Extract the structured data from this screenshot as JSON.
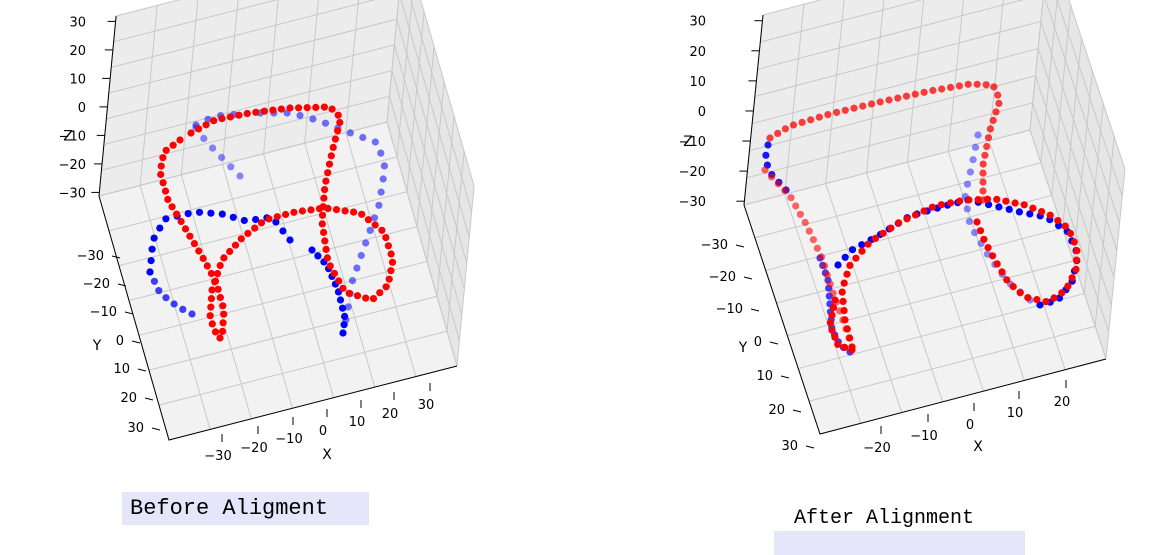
{
  "chart_data": [
    {
      "type": "scatter3d",
      "title": "Before Aligment",
      "xlabel": "X",
      "ylabel": "Y",
      "zlabel": "Z",
      "xticks": [
        "−30",
        "−20",
        "−10",
        "0",
        "10",
        "20",
        "30"
      ],
      "yticks": [
        "−30",
        "−20",
        "−10",
        "0",
        "10",
        "20",
        "30"
      ],
      "zticks": [
        "−30",
        "−20",
        "−10",
        "0",
        "10",
        "20",
        "30"
      ],
      "zlabel_row": 2,
      "colors": {
        "red": "#ff0000",
        "blue": "#0000ff"
      },
      "series": [
        {
          "name": "red",
          "color": "#ff0000",
          "estimated": true
        },
        {
          "name": "blue",
          "color": "#0000ff",
          "estimated": true
        }
      ]
    },
    {
      "type": "scatter3d",
      "title": "After Alignment",
      "xlabel": "X",
      "ylabel": "Y",
      "zlabel": "Z",
      "xticks": [
        "−20",
        "−10",
        "0",
        "10",
        "20"
      ],
      "yticks": [
        "−30",
        "−20",
        "−10",
        "0",
        "10",
        "20",
        "30"
      ],
      "zticks": [
        "−30",
        "−20",
        "−10",
        "0",
        "10",
        "20",
        "30"
      ],
      "zlabel_row": 2,
      "colors": {
        "red": "#ff0000",
        "blue": "#0000ff"
      },
      "series": [
        {
          "name": "red",
          "color": "#ff0000",
          "estimated": true
        },
        {
          "name": "blue",
          "color": "#0000ff",
          "estimated": true
        }
      ]
    }
  ]
}
